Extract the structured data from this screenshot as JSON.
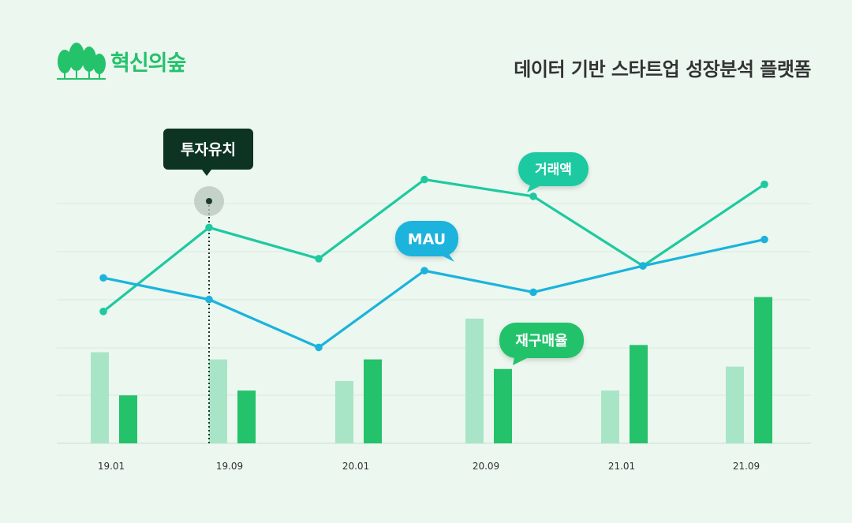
{
  "brand": {
    "logo_text": "혁신의숲",
    "logo_icon": "forest-trees-icon",
    "color": "#23c26b"
  },
  "headline": "데이터 기반 스타트업 성장분석 플랫폼",
  "chart_data": {
    "type": "line",
    "categories": [
      "19.01",
      "19.09",
      "20.01",
      "20.09",
      "21.01",
      "21.09"
    ],
    "grid": true,
    "y_axis_labels": false,
    "ylim": [
      0,
      100
    ],
    "series": [
      {
        "name": "거래액",
        "kind": "line",
        "color": "#1ec9a0",
        "x": [
          0,
          1,
          2,
          3,
          4,
          5,
          6
        ],
        "values": [
          55,
          90,
          77,
          110,
          103,
          74,
          108
        ]
      },
      {
        "name": "MAU",
        "kind": "line",
        "color": "#1bb3dc",
        "x": [
          0,
          1,
          2,
          3,
          4,
          5,
          6
        ],
        "values": [
          69,
          60,
          40,
          72,
          63,
          74,
          85
        ]
      },
      {
        "name": "재구매율",
        "kind": "bar",
        "color": "#23c26b",
        "light_color": "#a8e5c6",
        "values_light": [
          38,
          35,
          26,
          52,
          22,
          32
        ],
        "values_dark": [
          20,
          22,
          35,
          31,
          41,
          61
        ]
      }
    ],
    "annotations": [
      {
        "text": "투자유치",
        "type": "event",
        "category": "19.09",
        "color": "#0d3322"
      },
      {
        "text": "거래액",
        "type": "series-label",
        "color": "#1ec9a0"
      },
      {
        "text": "MAU",
        "type": "series-label",
        "color": "#1bb3dc"
      },
      {
        "text": "재구매율",
        "type": "series-label",
        "color": "#23c26b"
      }
    ]
  }
}
